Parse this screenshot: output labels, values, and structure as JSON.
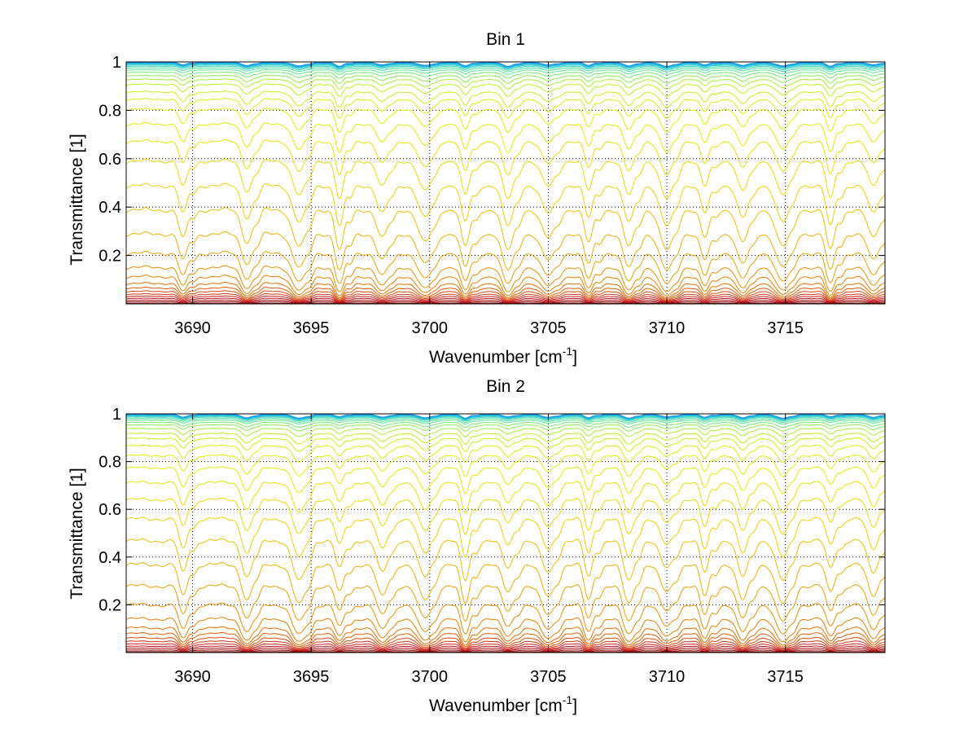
{
  "chart_data": [
    {
      "type": "line",
      "title": "Bin 1",
      "xlabel_main": "Wavenumber [cm",
      "xlabel_sup": "-1",
      "xlabel_close": "]",
      "ylabel": "Transmittance [1]",
      "xlim": [
        3687.2,
        3719.2
      ],
      "ylim": [
        0.0,
        1.0
      ],
      "xticks": [
        "3690",
        "3695",
        "3700",
        "3705",
        "3710",
        "3715"
      ],
      "yticks": [
        "0.2",
        "0.4",
        "0.6",
        "0.8",
        "1"
      ],
      "grid": true,
      "absorption_line_centers": [
        3689.6,
        3692.3,
        3694.5,
        3696.2,
        3698.0,
        3699.8,
        3701.5,
        3703.3,
        3705.0,
        3706.7,
        3708.4,
        3710.0,
        3711.6,
        3713.2,
        3714.9,
        3716.9,
        3718.7
      ],
      "series_continuum_levels": [
        0.003,
        0.009,
        0.016,
        0.024,
        0.033,
        0.043,
        0.055,
        0.07,
        0.09,
        0.12,
        0.16,
        0.22,
        0.3,
        0.4,
        0.5,
        0.6,
        0.68,
        0.75,
        0.81,
        0.85,
        0.88,
        0.91,
        0.93,
        0.945,
        0.958,
        0.968,
        0.976,
        0.983,
        0.988,
        0.992,
        0.995,
        0.997,
        0.999
      ],
      "colormap": [
        "#7f0000",
        "#c8141e",
        "#e65e00",
        "#ec9a00",
        "#f2d200",
        "#e6f000",
        "#b6f21e",
        "#5ae68c",
        "#1ec8d2",
        "#1e96f0"
      ]
    },
    {
      "type": "line",
      "title": "Bin 2",
      "xlabel_main": "Wavenumber [cm",
      "xlabel_sup": "-1",
      "xlabel_close": "]",
      "ylabel": "Transmittance [1]",
      "xlim": [
        3687.2,
        3719.2
      ],
      "ylim": [
        0.0,
        1.0
      ],
      "xticks": [
        "3690",
        "3695",
        "3700",
        "3705",
        "3710",
        "3715"
      ],
      "yticks": [
        "0.2",
        "0.4",
        "0.6",
        "0.8",
        "1"
      ],
      "grid": true,
      "absorption_line_centers": [
        3689.6,
        3692.3,
        3694.5,
        3696.2,
        3698.0,
        3699.8,
        3701.5,
        3703.3,
        3705.0,
        3706.7,
        3708.4,
        3710.0,
        3711.6,
        3713.2,
        3714.9,
        3716.9,
        3718.7
      ],
      "series_continuum_levels": [
        0.004,
        0.011,
        0.019,
        0.028,
        0.038,
        0.05,
        0.065,
        0.085,
        0.11,
        0.15,
        0.21,
        0.29,
        0.38,
        0.48,
        0.57,
        0.65,
        0.72,
        0.78,
        0.83,
        0.87,
        0.9,
        0.92,
        0.94,
        0.955,
        0.965,
        0.974,
        0.981,
        0.987,
        0.991,
        0.994,
        0.996,
        0.998,
        0.999
      ],
      "colormap": [
        "#7f0000",
        "#c8141e",
        "#e65e00",
        "#ec9a00",
        "#f2d200",
        "#e6f000",
        "#b6f21e",
        "#5ae68c",
        "#1ec8d2",
        "#1e96f0"
      ]
    }
  ]
}
